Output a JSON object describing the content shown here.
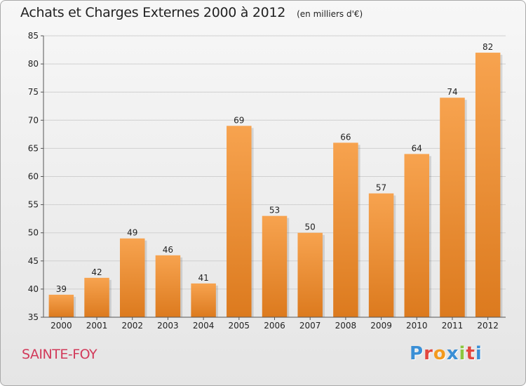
{
  "header": {
    "title": "Achats et Charges Externes 2000 à 2012",
    "unit": "(en milliers d'€)"
  },
  "footer": {
    "place": "SAINTE-FOY",
    "logo_text": "Proxiti",
    "logo_colors": [
      "#3a8fd6",
      "#e2473f",
      "#f39a1e",
      "#3a8fd6",
      "#8cc63f",
      "#e2473f",
      "#3a8fd6"
    ]
  },
  "colors": {
    "bar_light": "#f7a34f",
    "bar_dark": "#dc7a1e",
    "grid": "#d0d0d0",
    "axis": "#555555",
    "text": "#222222"
  },
  "chart_data": {
    "type": "bar",
    "title": "Achats et Charges Externes 2000 à 2012",
    "subtitle": "(en milliers d'€)",
    "categories": [
      "2000",
      "2001",
      "2002",
      "2003",
      "2004",
      "2005",
      "2006",
      "2007",
      "2008",
      "2009",
      "2010",
      "2011",
      "2012"
    ],
    "values": [
      39,
      42,
      49,
      46,
      41,
      69,
      53,
      50,
      66,
      57,
      64,
      74,
      82
    ],
    "ylim": [
      35,
      85
    ],
    "yticks": [
      35,
      40,
      45,
      50,
      55,
      60,
      65,
      70,
      75,
      80,
      85
    ],
    "grid": true,
    "data_labels": true
  }
}
